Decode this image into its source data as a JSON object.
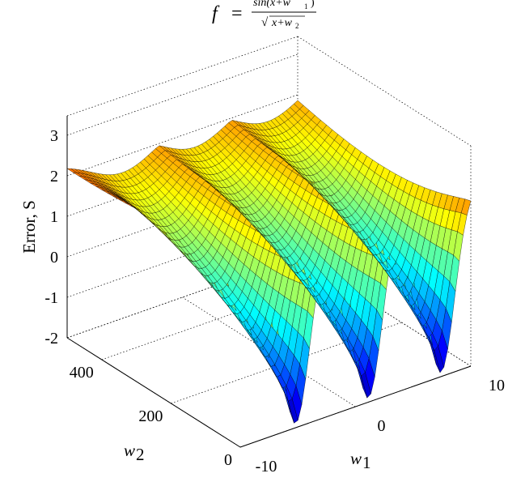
{
  "chart_data": {
    "type": "surface",
    "title": {
      "lhs": "f",
      "eq": "=",
      "numerator": "sin(x+w",
      "numerator_sub": "1",
      "numerator_close": ")",
      "denominator": "x+w",
      "denominator_sub": "2"
    },
    "zlabel": "Error, S",
    "xlabel": {
      "base": "w",
      "sub": "1"
    },
    "ylabel": {
      "base": "w",
      "sub": "2"
    },
    "xlim": [
      -10,
      10
    ],
    "ylim": [
      0,
      500
    ],
    "zlim": [
      -2.2,
      3.4
    ],
    "x_ticks": [
      "-10",
      "0",
      "10"
    ],
    "y_ticks": [
      "0",
      "200",
      "400"
    ],
    "z_ticks": [
      "-2",
      "-1",
      "0",
      "1",
      "2",
      "3"
    ],
    "colormap": "jet",
    "grid": true,
    "surface": {
      "description": "Error surface over w1 and w2 with three periodic valleys along w1",
      "valley_w1": [
        -5.2,
        1.1,
        7.4
      ],
      "ridge_level": 2.4,
      "valley_min_at_w2_0": -2.0,
      "valley_min_at_w2_500": 1.5
    }
  }
}
